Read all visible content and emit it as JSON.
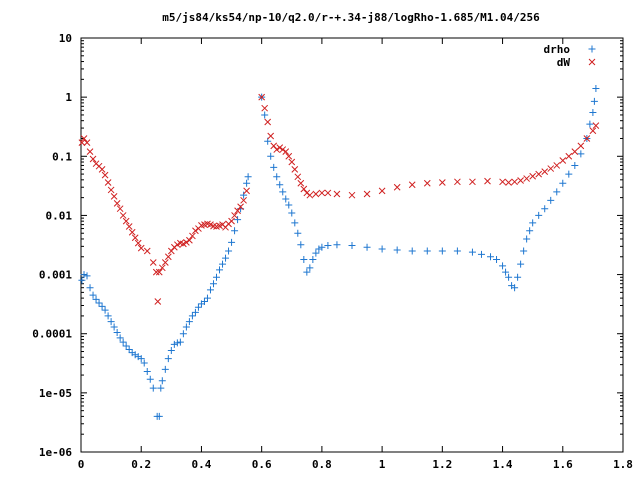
{
  "chart_data": {
    "type": "scatter",
    "title": "m5/js84/ks54/np-10/q2.0/r-+.34-j88/logRho-1.685/M1.04/256",
    "xlabel": "",
    "ylabel": "",
    "xlim": [
      0,
      1.8
    ],
    "ylim": [
      1e-06,
      10
    ],
    "y_scale": "log",
    "grid": false,
    "legend_position": "top-right",
    "x_ticks": [
      "0",
      "0.2",
      "0.4",
      "0.6",
      "0.8",
      "1",
      "1.2",
      "1.4",
      "1.6",
      "1.8"
    ],
    "y_ticks": [
      "1e-06",
      "1e-05",
      "0.0001",
      "0.001",
      "0.01",
      "0.1",
      "1",
      "10"
    ],
    "series": [
      {
        "name": "drho",
        "marker": "+",
        "color": "#1f77d0",
        "points": [
          [
            0.003,
            0.0008
          ],
          [
            0.01,
            0.001
          ],
          [
            0.02,
            0.00095
          ],
          [
            0.03,
            0.0006
          ],
          [
            0.04,
            0.00045
          ],
          [
            0.05,
            0.00038
          ],
          [
            0.06,
            0.00033
          ],
          [
            0.07,
            0.00029
          ],
          [
            0.08,
            0.00025
          ],
          [
            0.09,
            0.0002
          ],
          [
            0.1,
            0.00016
          ],
          [
            0.11,
            0.00013
          ],
          [
            0.12,
            0.000105
          ],
          [
            0.13,
            8.5e-05
          ],
          [
            0.14,
            7.2e-05
          ],
          [
            0.15,
            6.2e-05
          ],
          [
            0.16,
            5.4e-05
          ],
          [
            0.17,
            4.8e-05
          ],
          [
            0.18,
            4.4e-05
          ],
          [
            0.19,
            4.1e-05
          ],
          [
            0.2,
            3.8e-05
          ],
          [
            0.21,
            3.2e-05
          ],
          [
            0.22,
            2.3e-05
          ],
          [
            0.23,
            1.7e-05
          ],
          [
            0.24,
            1.2e-05
          ],
          [
            0.253,
            4e-06
          ],
          [
            0.26,
            4e-06
          ],
          [
            0.265,
            1.2e-05
          ],
          [
            0.27,
            1.6e-05
          ],
          [
            0.28,
            2.5e-05
          ],
          [
            0.29,
            3.8e-05
          ],
          [
            0.3,
            5.2e-05
          ],
          [
            0.31,
            6.6e-05
          ],
          [
            0.32,
            7e-05
          ],
          [
            0.33,
            7.2e-05
          ],
          [
            0.34,
            0.0001
          ],
          [
            0.35,
            0.00013
          ],
          [
            0.36,
            0.00016
          ],
          [
            0.37,
            0.0002
          ],
          [
            0.38,
            0.00023
          ],
          [
            0.39,
            0.00028
          ],
          [
            0.4,
            0.00032
          ],
          [
            0.41,
            0.00035
          ],
          [
            0.42,
            0.0004
          ],
          [
            0.43,
            0.00055
          ],
          [
            0.44,
            0.0007
          ],
          [
            0.45,
            0.0009
          ],
          [
            0.46,
            0.0012
          ],
          [
            0.47,
            0.0015
          ],
          [
            0.48,
            0.0019
          ],
          [
            0.49,
            0.0025
          ],
          [
            0.5,
            0.0035
          ],
          [
            0.51,
            0.0055
          ],
          [
            0.52,
            0.0085
          ],
          [
            0.53,
            0.013
          ],
          [
            0.54,
            0.022
          ],
          [
            0.55,
            0.035
          ],
          [
            0.555,
            0.045
          ],
          [
            0.6,
            1.0
          ],
          [
            0.61,
            0.5
          ],
          [
            0.62,
            0.18
          ],
          [
            0.63,
            0.1
          ],
          [
            0.64,
            0.065
          ],
          [
            0.65,
            0.045
          ],
          [
            0.66,
            0.033
          ],
          [
            0.67,
            0.025
          ],
          [
            0.68,
            0.019
          ],
          [
            0.69,
            0.015
          ],
          [
            0.7,
            0.011
          ],
          [
            0.71,
            0.0075
          ],
          [
            0.72,
            0.005
          ],
          [
            0.73,
            0.0032
          ],
          [
            0.74,
            0.0018
          ],
          [
            0.75,
            0.0011
          ],
          [
            0.76,
            0.0013
          ],
          [
            0.77,
            0.0018
          ],
          [
            0.78,
            0.0023
          ],
          [
            0.79,
            0.0027
          ],
          [
            0.8,
            0.0029
          ],
          [
            0.82,
            0.0031
          ],
          [
            0.85,
            0.0032
          ],
          [
            0.9,
            0.0031
          ],
          [
            0.95,
            0.0029
          ],
          [
            1.0,
            0.0027
          ],
          [
            1.05,
            0.0026
          ],
          [
            1.1,
            0.0025
          ],
          [
            1.15,
            0.0025
          ],
          [
            1.2,
            0.0025
          ],
          [
            1.25,
            0.0025
          ],
          [
            1.3,
            0.0024
          ],
          [
            1.33,
            0.0022
          ],
          [
            1.36,
            0.002
          ],
          [
            1.38,
            0.0018
          ],
          [
            1.4,
            0.0014
          ],
          [
            1.41,
            0.0011
          ],
          [
            1.42,
            0.0009
          ],
          [
            1.43,
            0.00065
          ],
          [
            1.44,
            0.0006
          ],
          [
            1.45,
            0.0009
          ],
          [
            1.46,
            0.0015
          ],
          [
            1.47,
            0.0025
          ],
          [
            1.48,
            0.004
          ],
          [
            1.49,
            0.0055
          ],
          [
            1.5,
            0.0075
          ],
          [
            1.52,
            0.01
          ],
          [
            1.54,
            0.013
          ],
          [
            1.56,
            0.018
          ],
          [
            1.58,
            0.025
          ],
          [
            1.6,
            0.035
          ],
          [
            1.62,
            0.05
          ],
          [
            1.64,
            0.07
          ],
          [
            1.66,
            0.11
          ],
          [
            1.68,
            0.2
          ],
          [
            1.69,
            0.35
          ],
          [
            1.7,
            0.55
          ],
          [
            1.705,
            0.85
          ],
          [
            1.71,
            1.4
          ]
        ]
      },
      {
        "name": "dW",
        "marker": "x",
        "color": "#d02020",
        "points": [
          [
            0.003,
            0.17
          ],
          [
            0.01,
            0.2
          ],
          [
            0.02,
            0.17
          ],
          [
            0.03,
            0.12
          ],
          [
            0.04,
            0.09
          ],
          [
            0.05,
            0.075
          ],
          [
            0.06,
            0.068
          ],
          [
            0.07,
            0.06
          ],
          [
            0.08,
            0.048
          ],
          [
            0.09,
            0.036
          ],
          [
            0.1,
            0.027
          ],
          [
            0.11,
            0.021
          ],
          [
            0.12,
            0.016
          ],
          [
            0.13,
            0.013
          ],
          [
            0.14,
            0.01
          ],
          [
            0.15,
            0.008
          ],
          [
            0.16,
            0.0065
          ],
          [
            0.17,
            0.0052
          ],
          [
            0.18,
            0.0042
          ],
          [
            0.19,
            0.0034
          ],
          [
            0.2,
            0.0028
          ],
          [
            0.22,
            0.0025
          ],
          [
            0.24,
            0.0016
          ],
          [
            0.25,
            0.0011
          ],
          [
            0.255,
            0.00035
          ],
          [
            0.26,
            0.0011
          ],
          [
            0.27,
            0.0013
          ],
          [
            0.28,
            0.0016
          ],
          [
            0.29,
            0.002
          ],
          [
            0.3,
            0.0025
          ],
          [
            0.31,
            0.0029
          ],
          [
            0.32,
            0.0032
          ],
          [
            0.33,
            0.0034
          ],
          [
            0.34,
            0.0033
          ],
          [
            0.35,
            0.0035
          ],
          [
            0.36,
            0.0038
          ],
          [
            0.37,
            0.0045
          ],
          [
            0.38,
            0.0055
          ],
          [
            0.39,
            0.006
          ],
          [
            0.4,
            0.0068
          ],
          [
            0.41,
            0.007
          ],
          [
            0.42,
            0.0072
          ],
          [
            0.43,
            0.007
          ],
          [
            0.44,
            0.0066
          ],
          [
            0.45,
            0.0065
          ],
          [
            0.46,
            0.0067
          ],
          [
            0.47,
            0.007
          ],
          [
            0.48,
            0.0063
          ],
          [
            0.49,
            0.0072
          ],
          [
            0.5,
            0.008
          ],
          [
            0.51,
            0.01
          ],
          [
            0.52,
            0.012
          ],
          [
            0.53,
            0.014
          ],
          [
            0.54,
            0.018
          ],
          [
            0.55,
            0.026
          ],
          [
            0.6,
            1.0
          ],
          [
            0.61,
            0.65
          ],
          [
            0.62,
            0.38
          ],
          [
            0.63,
            0.22
          ],
          [
            0.64,
            0.15
          ],
          [
            0.65,
            0.13
          ],
          [
            0.66,
            0.14
          ],
          [
            0.67,
            0.13
          ],
          [
            0.68,
            0.12
          ],
          [
            0.69,
            0.1
          ],
          [
            0.7,
            0.08
          ],
          [
            0.71,
            0.06
          ],
          [
            0.72,
            0.045
          ],
          [
            0.73,
            0.035
          ],
          [
            0.74,
            0.028
          ],
          [
            0.75,
            0.024
          ],
          [
            0.76,
            0.022
          ],
          [
            0.78,
            0.023
          ],
          [
            0.8,
            0.024
          ],
          [
            0.82,
            0.024
          ],
          [
            0.85,
            0.023
          ],
          [
            0.9,
            0.022
          ],
          [
            0.95,
            0.023
          ],
          [
            1.0,
            0.026
          ],
          [
            1.05,
            0.03
          ],
          [
            1.1,
            0.033
          ],
          [
            1.15,
            0.035
          ],
          [
            1.2,
            0.036
          ],
          [
            1.25,
            0.037
          ],
          [
            1.3,
            0.037
          ],
          [
            1.35,
            0.038
          ],
          [
            1.4,
            0.037
          ],
          [
            1.42,
            0.036
          ],
          [
            1.44,
            0.037
          ],
          [
            1.46,
            0.039
          ],
          [
            1.48,
            0.042
          ],
          [
            1.5,
            0.046
          ],
          [
            1.52,
            0.05
          ],
          [
            1.54,
            0.055
          ],
          [
            1.56,
            0.062
          ],
          [
            1.58,
            0.07
          ],
          [
            1.6,
            0.085
          ],
          [
            1.62,
            0.1
          ],
          [
            1.64,
            0.12
          ],
          [
            1.66,
            0.15
          ],
          [
            1.68,
            0.2
          ],
          [
            1.7,
            0.27
          ],
          [
            1.71,
            0.33
          ]
        ]
      }
    ]
  }
}
